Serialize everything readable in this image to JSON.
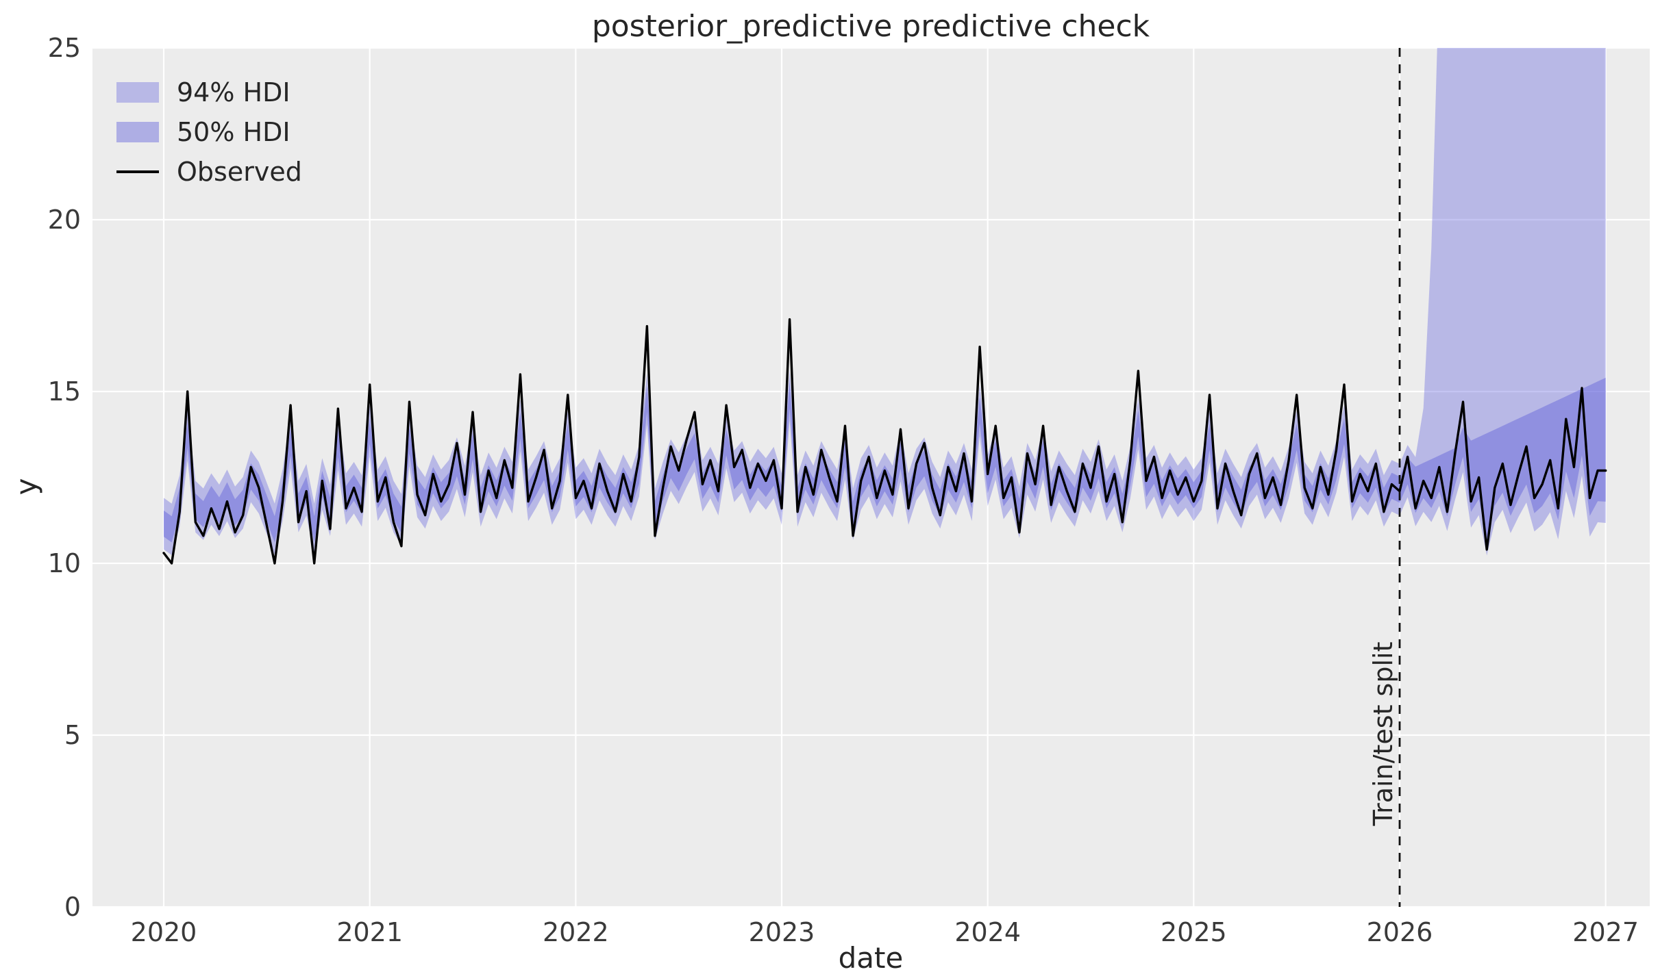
{
  "chart_data": {
    "type": "line",
    "title": "posterior_predictive predictive check",
    "xlabel": "date",
    "ylabel": "y",
    "x_ticks": [
      2020,
      2021,
      2022,
      2023,
      2024,
      2025,
      2026,
      2027
    ],
    "y_ticks": [
      0,
      5,
      10,
      15,
      20,
      25
    ],
    "x_range": [
      2019.654,
      2027.214
    ],
    "y_range": [
      0,
      25
    ],
    "grid": true,
    "legend_position": "upper left",
    "legend": [
      {
        "label": "94% HDI",
        "type": "patch"
      },
      {
        "label": "50% HDI",
        "type": "patch"
      },
      {
        "label": "Observed",
        "type": "line"
      }
    ],
    "annotation": {
      "text": "Train/test split",
      "x": 2026,
      "rotation": -90
    },
    "split_x": 2026,
    "observed": {
      "x_start": 2020,
      "x_step": 0.0384615,
      "values": [
        10.3,
        10.0,
        11.5,
        15.0,
        11.2,
        10.8,
        11.6,
        11.0,
        11.8,
        10.9,
        11.4,
        12.8,
        12.2,
        11.1,
        10.0,
        11.8,
        14.6,
        11.2,
        12.1,
        10.0,
        12.4,
        11.0,
        14.5,
        11.6,
        12.2,
        11.5,
        15.2,
        11.8,
        12.5,
        11.2,
        10.5,
        14.7,
        12.0,
        11.4,
        12.6,
        11.8,
        12.3,
        13.5,
        12.0,
        14.4,
        11.5,
        12.7,
        11.9,
        13.0,
        12.2,
        15.5,
        11.8,
        12.5,
        13.3,
        11.6,
        12.4,
        14.9,
        11.9,
        12.4,
        11.6,
        12.9,
        12.1,
        11.5,
        12.6,
        11.8,
        13.1,
        16.9,
        10.8,
        12.2,
        13.4,
        12.7,
        13.6,
        14.4,
        12.3,
        13.0,
        12.1,
        14.6,
        12.8,
        13.3,
        12.2,
        12.9,
        12.4,
        13.0,
        11.6,
        17.1,
        11.5,
        12.8,
        12.0,
        13.3,
        12.5,
        11.8,
        14.0,
        10.8,
        12.4,
        13.1,
        11.9,
        12.7,
        12.0,
        13.9,
        11.6,
        12.9,
        13.5,
        12.2,
        11.4,
        12.8,
        12.1,
        13.2,
        11.8,
        16.3,
        12.6,
        14.0,
        11.9,
        12.5,
        10.9,
        13.2,
        12.3,
        14.0,
        11.7,
        12.8,
        12.1,
        11.5,
        12.9,
        12.2,
        13.4,
        11.8,
        12.6,
        11.2,
        13.0,
        15.6,
        12.4,
        13.1,
        11.9,
        12.7,
        12.0,
        12.5,
        11.8,
        12.4,
        14.9,
        11.6,
        12.9,
        12.1,
        11.4,
        12.6,
        13.2,
        11.9,
        12.5,
        11.7,
        13.0,
        14.9,
        12.2,
        11.6,
        12.8,
        12.0,
        13.3,
        15.2,
        11.8,
        12.6,
        12.1,
        12.9,
        11.5,
        12.3,
        12.1,
        13.1,
        11.6,
        12.4,
        11.9,
        12.8,
        11.5,
        13.2,
        14.7,
        11.8,
        12.5,
        10.4,
        12.2,
        12.9,
        11.7,
        12.6,
        13.4,
        11.9,
        12.3,
        13.0,
        11.6,
        14.2,
        12.8,
        15.1,
        11.9,
        12.7,
        12.7
      ]
    },
    "bands": {
      "center_shrink": 0.55,
      "center_mean": 12.2,
      "hdi94_half": 0.75,
      "hdi50_half": 0.38,
      "test": {
        "u94_base": 13.0,
        "u94_slope": 1.2,
        "u94_delay": 0.08,
        "u94_quad": 1100,
        "l94_extra": 0.55,
        "u50_base": 12.6,
        "u50_slope": 2.8,
        "l50_extra": 0.3
      }
    },
    "colors": {
      "hdi94_fill": "rgba(99,99,222,0.38)",
      "hdi50_fill": "rgba(88,88,218,0.42)",
      "observed": "#000000",
      "split_line": "#111111",
      "plot_bg": "#ececec",
      "grid": "#ffffff",
      "text": "#262626"
    }
  }
}
